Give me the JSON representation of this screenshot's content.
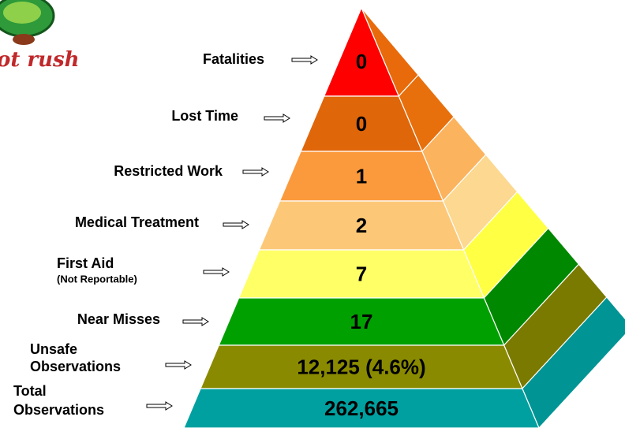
{
  "logo": {
    "text": "ot rush"
  },
  "levels": [
    {
      "label": [
        "Fatalities"
      ],
      "value": "0"
    },
    {
      "label": [
        "Lost Time"
      ],
      "value": "0"
    },
    {
      "label": [
        "Restricted Work"
      ],
      "value": "1"
    },
    {
      "label": [
        "Medical Treatment"
      ],
      "value": "2"
    },
    {
      "label": [
        "First Aid"
      ],
      "note": "(Not Reportable)",
      "value": "7"
    },
    {
      "label": [
        "Near Misses"
      ],
      "value": "17"
    },
    {
      "label": [
        "Unsafe",
        "Observations"
      ],
      "value": "12,125 (4.6%)"
    },
    {
      "label": [
        "Total",
        "Observations"
      ],
      "value": "262,665"
    }
  ]
}
